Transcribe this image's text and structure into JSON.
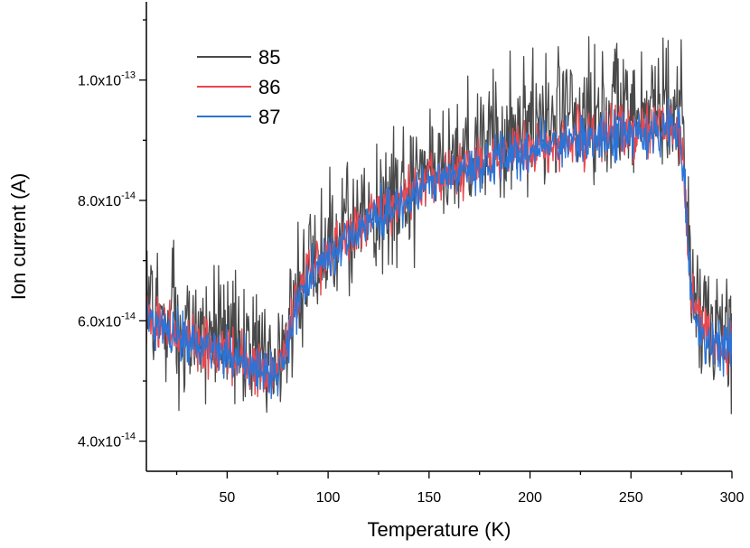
{
  "chart_data": {
    "type": "line",
    "title": "",
    "xlabel": "Temperature (K)",
    "ylabel": "Ion current (A)",
    "xlim": [
      10,
      300
    ],
    "ylim": [
      3.5e-14,
      1.13e-13
    ],
    "x_ticks": [
      {
        "value": 50,
        "label": "50"
      },
      {
        "value": 100,
        "label": "100"
      },
      {
        "value": 150,
        "label": "150"
      },
      {
        "value": 200,
        "label": "200"
      },
      {
        "value": 250,
        "label": "250"
      },
      {
        "value": 300,
        "label": "300"
      }
    ],
    "y_ticks": [
      {
        "value": 4e-14,
        "mantissa": "4.0x10",
        "exponent": "-14"
      },
      {
        "value": 6e-14,
        "mantissa": "6.0x10",
        "exponent": "-14"
      },
      {
        "value": 8e-14,
        "mantissa": "8.0x10",
        "exponent": "-14"
      },
      {
        "value": 1e-13,
        "mantissa": "1.0x10",
        "exponent": "-13"
      }
    ],
    "grid": false,
    "legend_position": "top-left",
    "x": [
      10,
      20,
      30,
      40,
      50,
      60,
      70,
      75,
      78,
      80,
      82,
      85,
      90,
      100,
      110,
      120,
      130,
      140,
      150,
      160,
      170,
      180,
      190,
      200,
      210,
      220,
      230,
      240,
      250,
      260,
      270,
      274,
      276,
      278,
      280,
      283,
      285,
      290,
      300
    ],
    "series": [
      {
        "name": "85",
        "color": "#4a4a4a",
        "values": [
          6.2e-14,
          6.05e-14,
          5.95e-14,
          5.8e-14,
          5.65e-14,
          5.5e-14,
          5.4e-14,
          5.4e-14,
          5.5e-14,
          5.8e-14,
          6.2e-14,
          6.6e-14,
          6.9e-14,
          7.3e-14,
          7.6e-14,
          7.9e-14,
          8.1e-14,
          8.3e-14,
          8.5e-14,
          8.7e-14,
          8.85e-14,
          9e-14,
          9.1e-14,
          9.2e-14,
          9.3e-14,
          9.35e-14,
          9.4e-14,
          9.5e-14,
          9.55e-14,
          9.6e-14,
          9.65e-14,
          9.6e-14,
          9e-14,
          7.8e-14,
          6.6e-14,
          6.2e-14,
          6e-14,
          5.9e-14,
          5.7e-14
        ],
        "noise": 5.5e-15
      },
      {
        "name": "86",
        "color": "#e8474f",
        "values": [
          6.05e-14,
          5.9e-14,
          5.75e-14,
          5.6e-14,
          5.45e-14,
          5.3e-14,
          5.2e-14,
          5.2e-14,
          5.3e-14,
          5.6e-14,
          6e-14,
          6.4e-14,
          6.75e-14,
          7.1e-14,
          7.4e-14,
          7.7e-14,
          7.9e-14,
          8.1e-14,
          8.3e-14,
          8.45e-14,
          8.55e-14,
          8.65e-14,
          8.75e-14,
          8.85e-14,
          8.95e-14,
          9e-14,
          9.05e-14,
          9.1e-14,
          9.15e-14,
          9.2e-14,
          9.25e-14,
          9.2e-14,
          8.6e-14,
          7.5e-14,
          6.4e-14,
          6e-14,
          5.85e-14,
          5.7e-14,
          5.55e-14
        ],
        "noise": 2.2e-15
      },
      {
        "name": "87",
        "color": "#2b73d6",
        "values": [
          6e-14,
          5.85e-14,
          5.7e-14,
          5.55e-14,
          5.4e-14,
          5.25e-14,
          5.15e-14,
          5.15e-14,
          5.25e-14,
          5.55e-14,
          5.95e-14,
          6.35e-14,
          6.7e-14,
          7.05e-14,
          7.35e-14,
          7.6e-14,
          7.85e-14,
          8.05e-14,
          8.25e-14,
          8.4e-14,
          8.5e-14,
          8.6e-14,
          8.7e-14,
          8.8e-14,
          8.9e-14,
          8.95e-14,
          9e-14,
          9.05e-14,
          9.1e-14,
          9.1e-14,
          9.15e-14,
          9.1e-14,
          8.5e-14,
          7.4e-14,
          6.3e-14,
          5.95e-14,
          5.8e-14,
          5.65e-14,
          5.5e-14
        ],
        "noise": 2e-15
      }
    ]
  }
}
